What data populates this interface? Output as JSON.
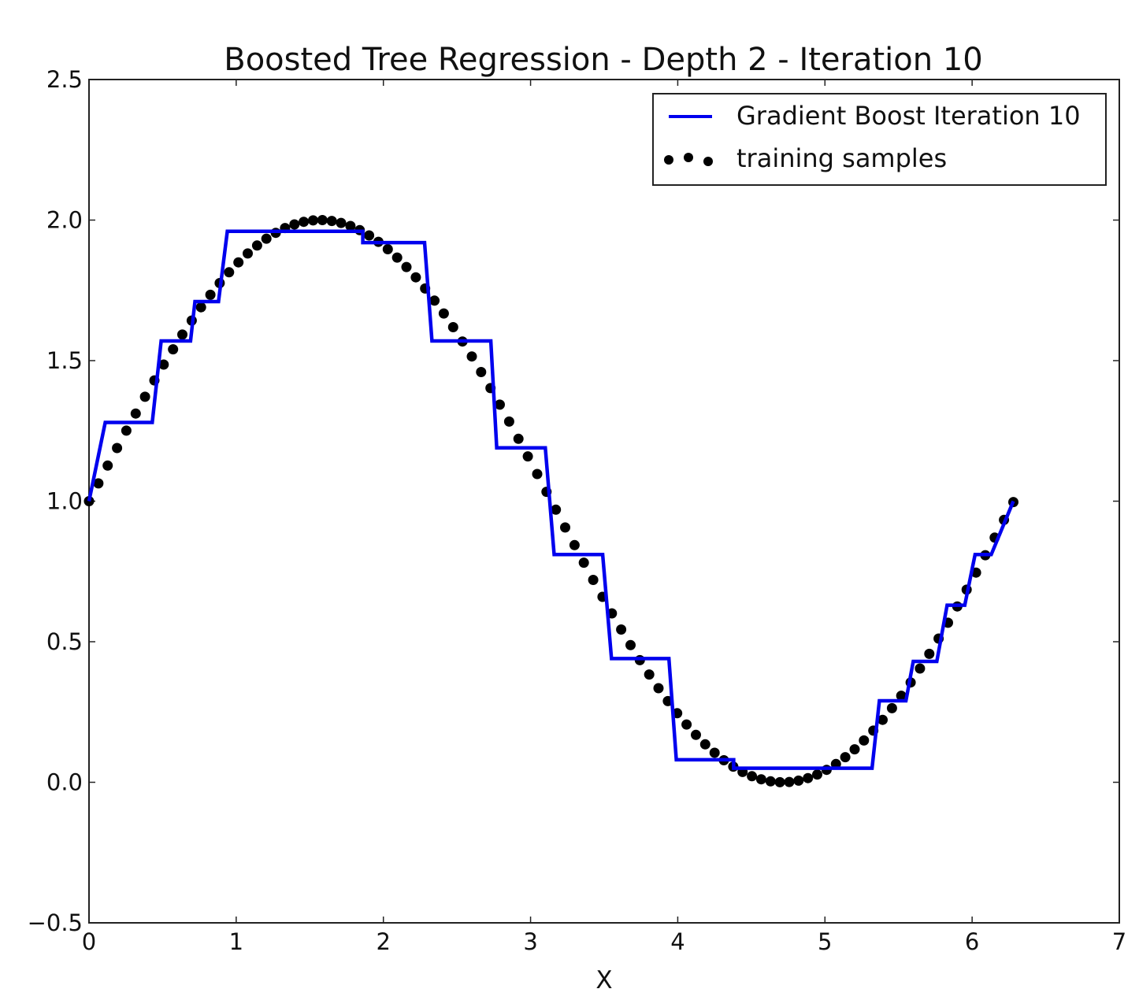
{
  "chart_data": {
    "type": "line",
    "title": "Boosted Tree Regression - Depth 2 - Iteration 10",
    "xlabel": "X",
    "ylabel": "",
    "xlim": [
      0,
      7
    ],
    "ylim": [
      -0.5,
      2.5
    ],
    "x_ticks": [
      "0",
      "1",
      "2",
      "3",
      "4",
      "5",
      "6",
      "7"
    ],
    "y_ticks": [
      "−0.5",
      "0.0",
      "0.5",
      "1.0",
      "1.5",
      "2.0",
      "2.5"
    ],
    "grid": false,
    "legend_position": "top-right",
    "series": [
      {
        "name": "Gradient Boost Iteration 10",
        "style": "step-line",
        "color": "#0000ee",
        "x": [
          0.0,
          0.11,
          0.11,
          0.43,
          0.43,
          0.49,
          0.49,
          0.69,
          0.69,
          0.85,
          0.85,
          0.94,
          0.94,
          2.28,
          2.28,
          2.33,
          2.33,
          2.73,
          2.73,
          2.77,
          2.77,
          3.1,
          3.1,
          3.16,
          3.16,
          3.49,
          3.49,
          3.55,
          3.55,
          3.94,
          3.94,
          3.99,
          3.99,
          4.38,
          4.38,
          5.32,
          5.32,
          5.37,
          5.37,
          5.55,
          5.55,
          5.6,
          5.6,
          5.76,
          5.76,
          5.83,
          5.83,
          5.95,
          5.95,
          6.02,
          6.02,
          6.13,
          6.13,
          6.28
        ],
        "y": [
          1.0,
          1.28,
          1.28,
          1.28,
          1.28,
          1.42,
          1.42,
          1.57,
          1.57,
          1.71,
          1.71,
          1.78,
          1.78,
          1.92,
          1.92,
          1.85,
          1.85,
          1.57,
          1.57,
          1.39,
          1.39,
          1.19,
          1.19,
          1.0,
          1.0,
          0.81,
          0.81,
          0.6,
          0.6,
          0.44,
          0.44,
          0.25,
          0.25,
          0.08,
          0.08,
          0.05,
          0.05,
          0.18,
          0.18,
          0.29,
          0.29,
          0.43,
          0.43,
          0.52,
          0.52,
          0.63,
          0.63,
          0.74,
          0.74,
          0.81,
          0.81,
          0.88,
          0.88,
          1.0
        ],
        "flat_levels": [
          {
            "from": 0.94,
            "to": 1.86,
            "y": 1.96
          },
          {
            "from": 1.86,
            "to": 2.28,
            "y": 1.92
          },
          {
            "from": 2.33,
            "to": 2.73,
            "y": 1.57
          },
          {
            "from": 2.77,
            "to": 3.1,
            "y": 1.19
          },
          {
            "from": 3.16,
            "to": 3.49,
            "y": 0.81
          },
          {
            "from": 3.55,
            "to": 3.94,
            "y": 0.44
          },
          {
            "from": 3.99,
            "to": 4.38,
            "y": 0.08
          },
          {
            "from": 4.38,
            "to": 5.32,
            "y": 0.05
          }
        ]
      },
      {
        "name": "training samples",
        "style": "markers",
        "color": "#000000",
        "function": "1 + sin(x)",
        "x_range": [
          0,
          6.28
        ],
        "n_points": 100
      }
    ]
  }
}
